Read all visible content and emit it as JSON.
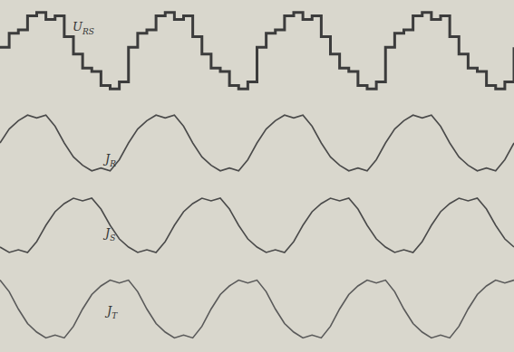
{
  "chart_data": [
    {
      "type": "line",
      "tick_labels": false,
      "xlim": [
        0,
        56
      ],
      "ylim": [
        -2.6,
        2.6
      ],
      "x": [
        0,
        1,
        2,
        3,
        4,
        5,
        6,
        7,
        8,
        9,
        10,
        11,
        12,
        13,
        14,
        15,
        16,
        17,
        18,
        19,
        20,
        21,
        22,
        23,
        24,
        25,
        26,
        27,
        28,
        29,
        30,
        31,
        32,
        33,
        34,
        35,
        36,
        37,
        38,
        39,
        40,
        41,
        42,
        43,
        44,
        45,
        46,
        47,
        48,
        49,
        50,
        51,
        52,
        53,
        54,
        55,
        56
      ],
      "series": [
        {
          "name": "URS",
          "color": "#3c3c3c",
          "line_style": "step",
          "values": [
            0.2,
            1,
            1.2,
            2,
            2.2,
            1.8,
            2,
            0.8,
            -0.2,
            -1,
            -1.2,
            -2,
            -2.2,
            -1.8,
            0.2,
            1,
            1.2,
            2,
            2.2,
            1.8,
            2,
            0.8,
            -0.2,
            -1,
            -1.2,
            -2,
            -2.2,
            -1.8,
            0.2,
            1,
            1.2,
            2,
            2.2,
            1.8,
            2,
            0.8,
            -0.2,
            -1,
            -1.2,
            -2,
            -2.2,
            -1.8,
            0.2,
            1,
            1.2,
            2,
            2.2,
            1.8,
            2,
            0.8,
            -0.2,
            -1,
            -1.2,
            -2,
            -2.2,
            -1.8,
            0.2
          ]
        }
      ]
    },
    {
      "type": "line",
      "tick_labels": false,
      "xlim": [
        0,
        56
      ],
      "ylim": [
        -1.3,
        1.3
      ],
      "x": [
        0,
        1,
        2,
        3,
        4,
        5,
        6,
        7,
        8,
        9,
        10,
        11,
        12,
        13,
        14,
        15,
        16,
        17,
        18,
        19,
        20,
        21,
        22,
        23,
        24,
        25,
        26,
        27,
        28,
        29,
        30,
        31,
        32,
        33,
        34,
        35,
        36,
        37,
        38,
        39,
        40,
        41,
        42,
        43,
        44,
        45,
        46,
        47,
        48,
        49,
        50,
        51,
        52,
        53,
        54,
        55,
        56
      ],
      "series": [
        {
          "name": "JR",
          "color": "#4a4a4a",
          "line_style": "solid",
          "values": [
            0,
            0.5,
            0.8,
            1,
            0.9,
            1,
            0.6,
            0,
            -0.5,
            -0.8,
            -1,
            -0.9,
            -1,
            -0.6,
            0,
            0.5,
            0.8,
            1,
            0.9,
            1,
            0.6,
            0,
            -0.5,
            -0.8,
            -1,
            -0.9,
            -1,
            -0.6,
            0,
            0.5,
            0.8,
            1,
            0.9,
            1,
            0.6,
            0,
            -0.5,
            -0.8,
            -1,
            -0.9,
            -1,
            -0.6,
            0,
            0.5,
            0.8,
            1,
            0.9,
            1,
            0.6,
            0,
            -0.5,
            -0.8,
            -1,
            -0.9,
            -1,
            -0.6,
            0
          ]
        }
      ]
    },
    {
      "type": "line",
      "tick_labels": false,
      "xlim": [
        0,
        56
      ],
      "ylim": [
        -1.3,
        1.3
      ],
      "x": [
        0,
        1,
        2,
        3,
        4,
        5,
        6,
        7,
        8,
        9,
        10,
        11,
        12,
        13,
        14,
        15,
        16,
        17,
        18,
        19,
        20,
        21,
        22,
        23,
        24,
        25,
        26,
        27,
        28,
        29,
        30,
        31,
        32,
        33,
        34,
        35,
        36,
        37,
        38,
        39,
        40,
        41,
        42,
        43,
        44,
        45,
        46,
        47,
        48,
        49,
        50,
        51,
        52,
        53,
        54,
        55,
        56
      ],
      "series": [
        {
          "name": "JS",
          "color": "#4a4a4a",
          "line_style": "solid",
          "values": [
            -0.8,
            -1,
            -0.9,
            -1,
            -0.6,
            0,
            0.5,
            0.8,
            1,
            0.9,
            1,
            0.6,
            0,
            -0.5,
            -0.8,
            -1,
            -0.9,
            -1,
            -0.6,
            0,
            0.5,
            0.8,
            1,
            0.9,
            1,
            0.6,
            0,
            -0.5,
            -0.8,
            -1,
            -0.9,
            -1,
            -0.6,
            0,
            0.5,
            0.8,
            1,
            0.9,
            1,
            0.6,
            0,
            -0.5,
            -0.8,
            -1,
            -0.9,
            -1,
            -0.6,
            0,
            0.5,
            0.8,
            1,
            0.9,
            1,
            0.6,
            0,
            -0.5,
            -0.8
          ]
        }
      ]
    },
    {
      "type": "line",
      "tick_labels": false,
      "xlim": [
        0,
        56
      ],
      "ylim": [
        -1.3,
        1.3
      ],
      "x": [
        0,
        1,
        2,
        3,
        4,
        5,
        6,
        7,
        8,
        9,
        10,
        11,
        12,
        13,
        14,
        15,
        16,
        17,
        18,
        19,
        20,
        21,
        22,
        23,
        24,
        25,
        26,
        27,
        28,
        29,
        30,
        31,
        32,
        33,
        34,
        35,
        36,
        37,
        38,
        39,
        40,
        41,
        42,
        43,
        44,
        45,
        46,
        47,
        48,
        49,
        50,
        51,
        52,
        53,
        54,
        55,
        56
      ],
      "series": [
        {
          "name": "JT",
          "color": "#5a5a5a",
          "line_style": "solid",
          "values": [
            1,
            0.6,
            0,
            -0.5,
            -0.8,
            -1,
            -0.9,
            -1,
            -0.6,
            0,
            0.5,
            0.8,
            1,
            0.9,
            1,
            0.6,
            0,
            -0.5,
            -0.8,
            -1,
            -0.9,
            -1,
            -0.6,
            0,
            0.5,
            0.8,
            1,
            0.9,
            1,
            0.6,
            0,
            -0.5,
            -0.8,
            -1,
            -0.9,
            -1,
            -0.6,
            0,
            0.5,
            0.8,
            1,
            0.9,
            1,
            0.6,
            0,
            -0.5,
            -0.8,
            -1,
            -0.9,
            -1,
            -0.6,
            0,
            0.5,
            0.8,
            1,
            0.9,
            1
          ]
        }
      ]
    }
  ]
}
